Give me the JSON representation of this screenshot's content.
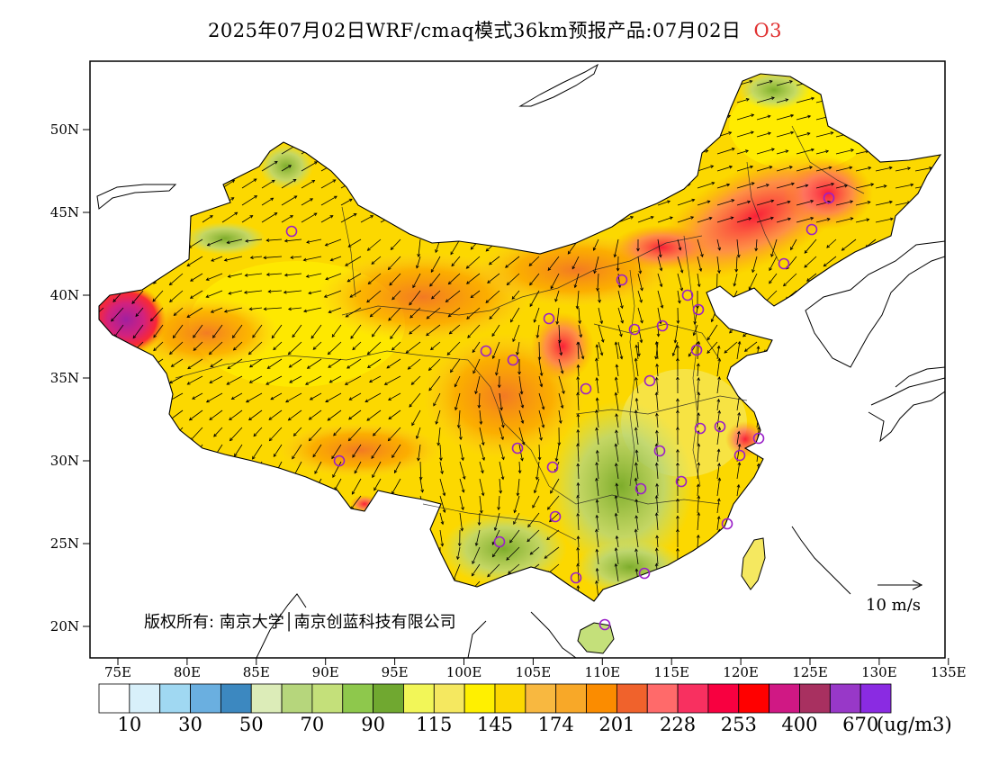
{
  "header": {
    "title": "2025年07月02日WRF/cmaq模式36km预报产品:07月02日",
    "species": "O3",
    "species_color": "#e03030"
  },
  "map": {
    "lon_ticks": [
      "75E",
      "80E",
      "85E",
      "90E",
      "95E",
      "100E",
      "105E",
      "110E",
      "115E",
      "120E",
      "125E",
      "130E",
      "135E"
    ],
    "lat_ticks": [
      "50N",
      "45N",
      "40N",
      "35N",
      "30N",
      "25N",
      "20N"
    ],
    "copyright": "版权所有: 南京大学│南京创蓝科技有限公司",
    "wind_scale_label": "10 m/s",
    "station_marker_color": "#9a20c8"
  },
  "colorbar": {
    "colors": [
      "#ffffff",
      "#d8f0fa",
      "#a0d8f2",
      "#6aafe0",
      "#3c88c0",
      "#dcecb8",
      "#b6d67c",
      "#c4e07a",
      "#8ec84c",
      "#70a830",
      "#f2f658",
      "#f5e860",
      "#fff000",
      "#fcd800",
      "#f8b840",
      "#f8a828",
      "#fb8c00",
      "#f0622c",
      "#ff6a6a",
      "#f83060",
      "#f80040",
      "#ff0000",
      "#d01884",
      "#a83060",
      "#9838c8",
      "#8a2be2"
    ],
    "labels": [
      "10",
      "30",
      "50",
      "70",
      "90",
      "115",
      "145",
      "174",
      "201",
      "228",
      "253",
      "400",
      "670"
    ],
    "unit": "(ug/m3)"
  }
}
